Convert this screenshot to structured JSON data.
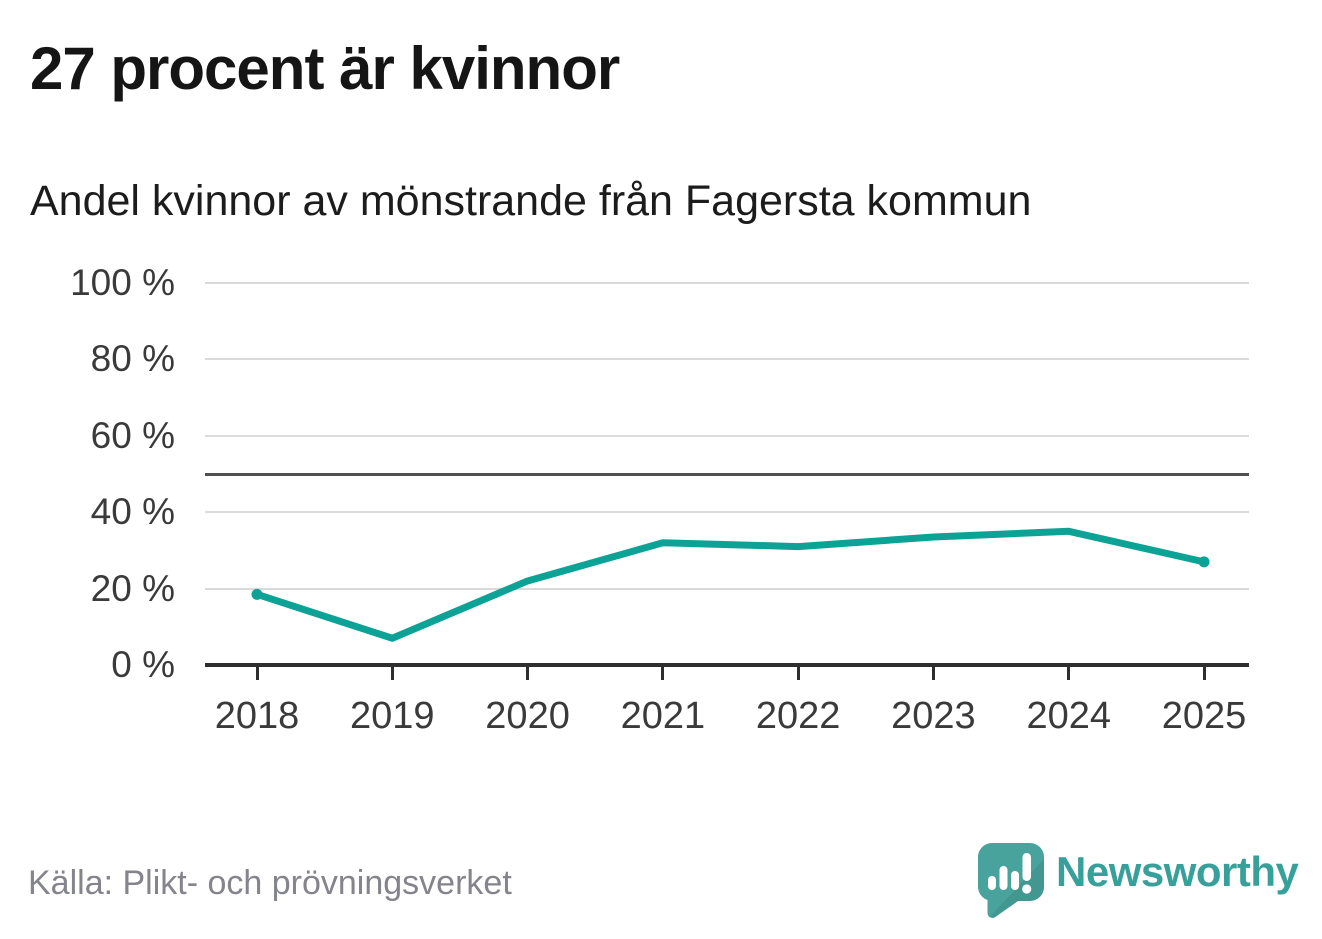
{
  "chart_data": {
    "type": "line",
    "title": "27 procent är kvinnor",
    "subtitle": "Andel kvinnor av mönstrande från Fagersta kommun",
    "x_labels": [
      "2018",
      "2019",
      "2020",
      "2021",
      "2022",
      "2023",
      "2024",
      "2025"
    ],
    "series": [
      {
        "name": "Andel kvinnor av mönstrande",
        "values": [
          18.5,
          7,
          22,
          32,
          31,
          33.5,
          35,
          27
        ]
      }
    ],
    "unit": "%",
    "ylim": [
      0,
      100
    ],
    "y_ticks": [
      0,
      20,
      40,
      60,
      80,
      100
    ],
    "y_tick_labels": [
      "0 %",
      "20 %",
      "40 %",
      "60 %",
      "80 %",
      "100 %"
    ],
    "reference_line": 50,
    "grid": true,
    "legend": "none",
    "line_color": "#0da296",
    "endpoint_markers": true
  },
  "footer": {
    "source": "Källa: Plikt- och prövningsverket",
    "brand": "Newsworthy"
  },
  "icons": {
    "brand_logo": "newsworthy-speech-bubble-bar-chart-icon"
  },
  "colors": {
    "accent_teal": "#0da296",
    "logo_bubble": "#48a39c",
    "logo_shade": "#3f958f",
    "wordmark": "#38a09a",
    "gridline": "#dadada",
    "reference_line": "#4f4f4f",
    "axis": "#2e2e2e",
    "title_text": "#151515",
    "tick_text": "#3a3a3a",
    "source_text": "#84848c"
  }
}
